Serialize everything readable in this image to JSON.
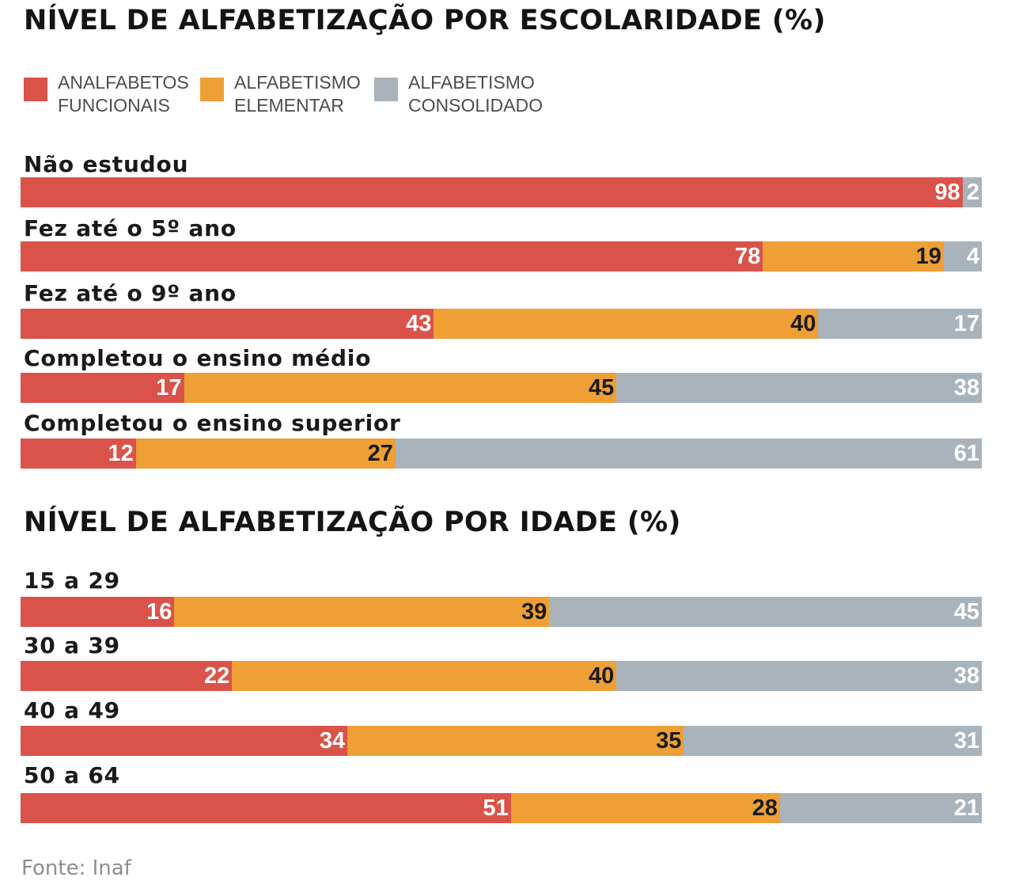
{
  "colors": {
    "analfabetos": "#d9534a",
    "elementar": "#ee9f35",
    "consolidado": "#a9b3bb",
    "label_light": "#ffffff",
    "label_dark": "#1a1a1a"
  },
  "legend": [
    {
      "lines": [
        "ANALFABETOS",
        "FUNCIONAIS"
      ],
      "color": "#d9534a"
    },
    {
      "lines": [
        "ALFABETISMO",
        "ELEMENTAR"
      ],
      "color": "#ee9f35"
    },
    {
      "lines": [
        "ALFABETISMO",
        "CONSOLIDADO"
      ],
      "color": "#a9b3bb"
    }
  ],
  "source": "Fonte: Inaf",
  "chart_data": [
    {
      "type": "bar",
      "orientation": "horizontal",
      "stacked": true,
      "title": "NÍVEL DE ALFABETIZAÇÃO POR ESCOLARIDADE (%)",
      "legend_placement": "top-left",
      "categories": [
        "Não estudou",
        "Fez até o 5º ano",
        "Fez até o 9º ano",
        "Completou o ensino médio",
        "Completou o ensino superior"
      ],
      "series": [
        {
          "name": "ANALFABETOS FUNCIONAIS",
          "color": "#d9534a",
          "values": [
            98,
            78,
            43,
            17,
            12
          ]
        },
        {
          "name": "ALFABETISMO ELEMENTAR",
          "color": "#ee9f35",
          "values": [
            0,
            19,
            40,
            45,
            27
          ]
        },
        {
          "name": "ALFABETISMO CONSOLIDADO",
          "color": "#a9b3bb",
          "values": [
            2,
            4,
            17,
            38,
            61
          ]
        }
      ]
    },
    {
      "type": "bar",
      "orientation": "horizontal",
      "stacked": true,
      "title": "NÍVEL DE ALFABETIZAÇÃO POR IDADE (%)",
      "categories": [
        "15 a 29",
        "30 a 39",
        "40 a 49",
        "50 a 64"
      ],
      "series": [
        {
          "name": "ANALFABETOS FUNCIONAIS",
          "color": "#d9534a",
          "values": [
            16,
            22,
            34,
            51
          ]
        },
        {
          "name": "ALFABETISMO ELEMENTAR",
          "color": "#ee9f35",
          "values": [
            39,
            40,
            35,
            28
          ]
        },
        {
          "name": "ALFABETISMO CONSOLIDADO",
          "color": "#a9b3bb",
          "values": [
            45,
            38,
            31,
            21
          ]
        }
      ]
    }
  ]
}
